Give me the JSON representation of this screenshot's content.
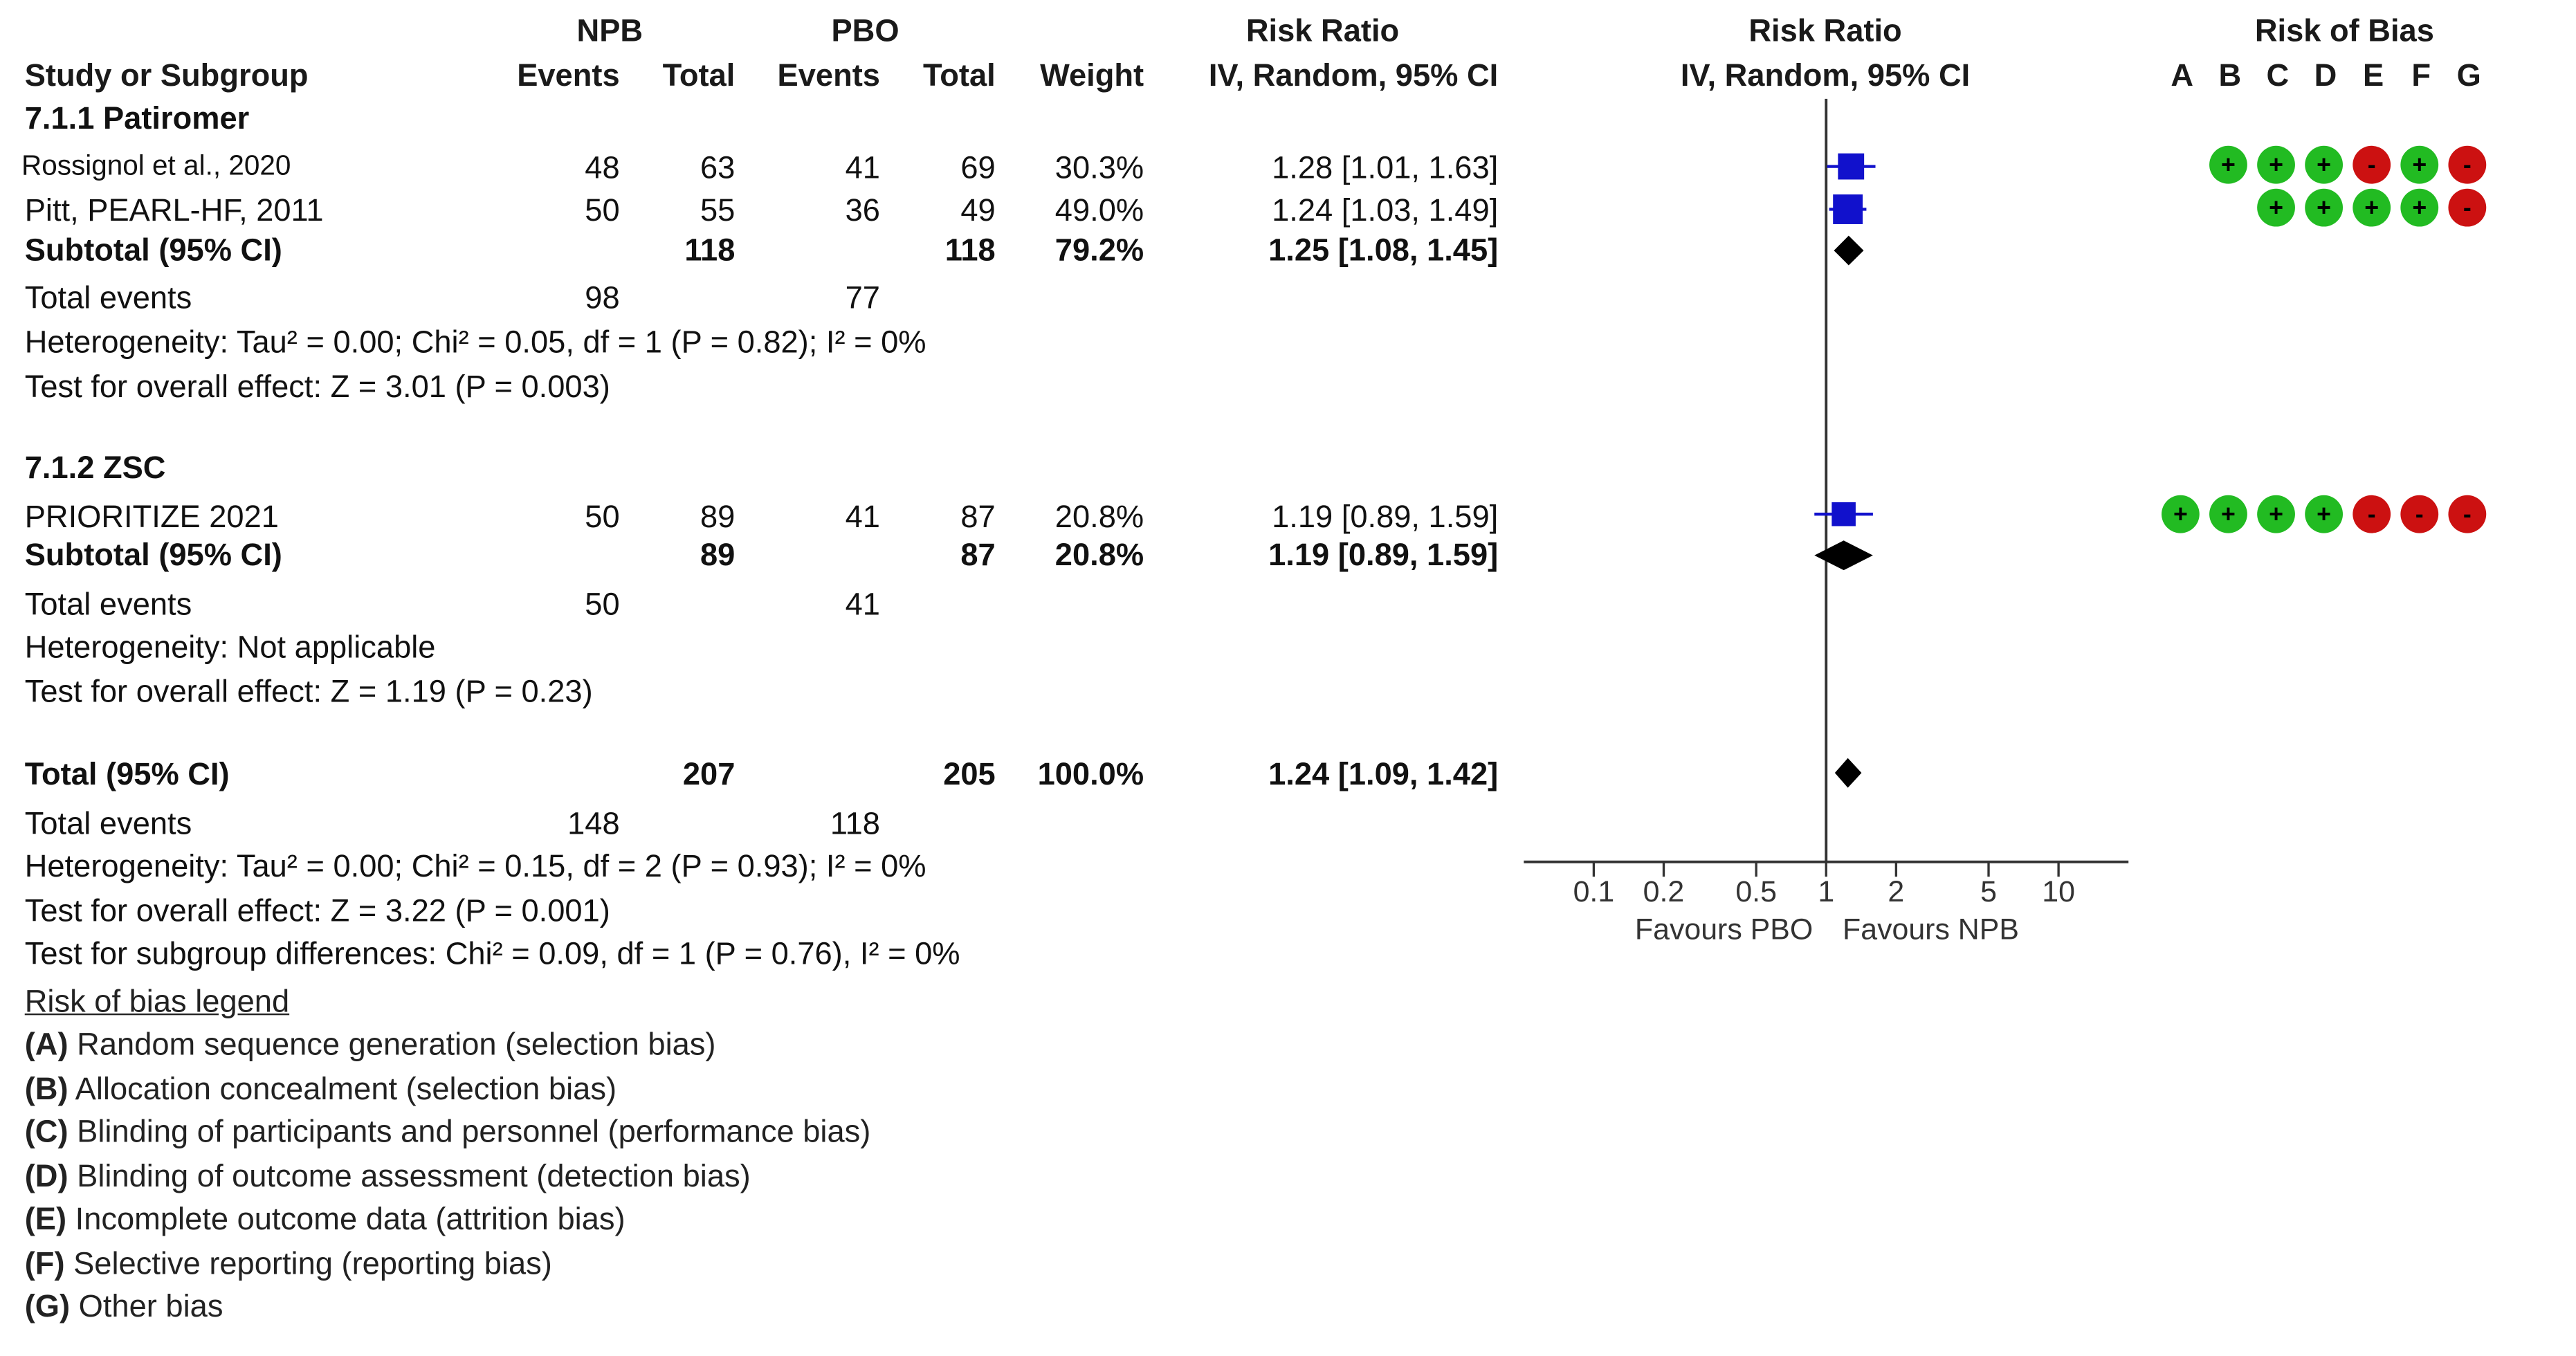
{
  "header": {
    "group1": "NPB",
    "group2": "PBO",
    "risk_ratio": "Risk Ratio",
    "risk_ratio_plot": "Risk Ratio",
    "risk_of_bias": "Risk of Bias",
    "study": "Study or Subgroup",
    "events": "Events",
    "total": "Total",
    "weight": "Weight",
    "method": "IV, Random, 95% CI",
    "method_plot": "IV, Random, 95% CI",
    "bias_letters": [
      "A",
      "B",
      "C",
      "D",
      "E",
      "F",
      "G"
    ]
  },
  "subgroups": [
    {
      "title": "7.1.1 Patiromer",
      "studies": [
        {
          "name": "Rossignol et al., 2020",
          "e1": "48",
          "t1": "63",
          "e2": "41",
          "t2": "69",
          "weight": "30.3%",
          "ci": "1.28 [1.01, 1.63]"
        },
        {
          "name": "Pitt, PEARL-HF, 2011",
          "e1": "50",
          "t1": "55",
          "e2": "36",
          "t2": "49",
          "weight": "49.0%",
          "ci": "1.24 [1.03, 1.49]"
        }
      ],
      "subtotal": {
        "label": "Subtotal (95% CI)",
        "t1": "118",
        "t2": "118",
        "weight": "79.2%",
        "ci": "1.25 [1.08, 1.45]"
      },
      "events": {
        "label": "Total events",
        "e1": "98",
        "e2": "77"
      },
      "heterogeneity": "Heterogeneity: Tau² = 0.00; Chi² = 0.05, df = 1 (P = 0.82); I² = 0%",
      "overall": "Test for overall effect: Z = 3.01 (P = 0.003)"
    },
    {
      "title": "7.1.2 ZSC",
      "studies": [
        {
          "name": "PRIORITIZE 2021",
          "e1": "50",
          "t1": "89",
          "e2": "41",
          "t2": "87",
          "weight": "20.8%",
          "ci": "1.19 [0.89, 1.59]"
        }
      ],
      "subtotal": {
        "label": "Subtotal (95% CI)",
        "t1": "89",
        "t2": "87",
        "weight": "20.8%",
        "ci": "1.19 [0.89, 1.59]"
      },
      "events": {
        "label": "Total events",
        "e1": "50",
        "e2": "41"
      },
      "heterogeneity": "Heterogeneity: Not applicable",
      "overall": "Test for overall effect: Z = 1.19 (P = 0.23)"
    }
  ],
  "total": {
    "label": "Total (95% CI)",
    "t1": "207",
    "t2": "205",
    "weight": "100.0%",
    "ci": "1.24 [1.09, 1.42]",
    "events": {
      "label": "Total events",
      "e1": "148",
      "e2": "118"
    },
    "heterogeneity": "Heterogeneity: Tau² = 0.00; Chi² = 0.15, df = 2 (P = 0.93); I² = 0%",
    "overall": "Test for overall effect: Z = 3.22 (P = 0.001)",
    "subgroup_diff": "Test for subgroup differences: Chi² = 0.09, df = 1 (P = 0.76), I² = 0%"
  },
  "legend": {
    "title": "Risk of bias legend",
    "items": [
      {
        "key": "(A)",
        "text": " Random sequence generation (selection bias)"
      },
      {
        "key": "(B)",
        "text": " Allocation concealment (selection bias)"
      },
      {
        "key": "(C)",
        "text": " Blinding of participants and personnel (performance bias)"
      },
      {
        "key": "(D)",
        "text": " Blinding of outcome assessment (detection bias)"
      },
      {
        "key": "(E)",
        "text": " Incomplete outcome data (attrition bias)"
      },
      {
        "key": "(F)",
        "text": " Selective reporting (reporting bias)"
      },
      {
        "key": "(G)",
        "text": " Other bias"
      }
    ]
  },
  "colors": {
    "low": "#22bb22",
    "high": "#cc1111",
    "square": "#1111cc",
    "diamond": "#000000",
    "line": "#333333"
  },
  "chart_data": {
    "type": "forest",
    "title": "Risk Ratio",
    "xscale": "log",
    "xlim": [
      0.05,
      20
    ],
    "xticks": [
      0.1,
      0.2,
      0.5,
      1,
      2,
      5,
      10
    ],
    "xtick_labels": [
      "0.1",
      "0.2",
      "0.5",
      "1",
      "2",
      "5",
      "10"
    ],
    "favours_left": "Favours PBO",
    "favours_right": "Favours NPB",
    "studies": [
      {
        "name": "Rossignol et al., 2020",
        "rr": 1.28,
        "lo": 1.01,
        "hi": 1.63,
        "weight": 30.3
      },
      {
        "name": "Pitt, PEARL-HF, 2011",
        "rr": 1.24,
        "lo": 1.03,
        "hi": 1.49,
        "weight": 49.0
      },
      {
        "name": "PRIORITIZE 2021",
        "rr": 1.19,
        "lo": 0.89,
        "hi": 1.59,
        "weight": 20.8
      }
    ],
    "summaries": [
      {
        "name": "Subtotal 7.1.1 Patiromer",
        "rr": 1.25,
        "lo": 1.08,
        "hi": 1.45
      },
      {
        "name": "Subtotal 7.1.2 ZSC",
        "rr": 1.19,
        "lo": 0.89,
        "hi": 1.59
      },
      {
        "name": "Total",
        "rr": 1.24,
        "lo": 1.09,
        "hi": 1.42
      }
    ],
    "risk_of_bias": [
      {
        "study": "Rossignol et al., 2020",
        "ratings": [
          "+",
          "+",
          "+",
          "-",
          "+",
          "-"
        ],
        "domains": [
          "B",
          "C",
          "D",
          "E",
          "F",
          "G"
        ]
      },
      {
        "study": "Pitt, PEARL-HF, 2011",
        "ratings": [
          "+",
          "+",
          "+",
          "+",
          "-"
        ],
        "domains": [
          "C",
          "D",
          "E",
          "F",
          "G"
        ]
      },
      {
        "study": "PRIORITIZE 2021",
        "ratings": [
          "+",
          "+",
          "+",
          "+",
          "-",
          "-",
          "-"
        ],
        "domains": [
          "A",
          "B",
          "C",
          "D",
          "E",
          "F",
          "G"
        ]
      }
    ]
  }
}
